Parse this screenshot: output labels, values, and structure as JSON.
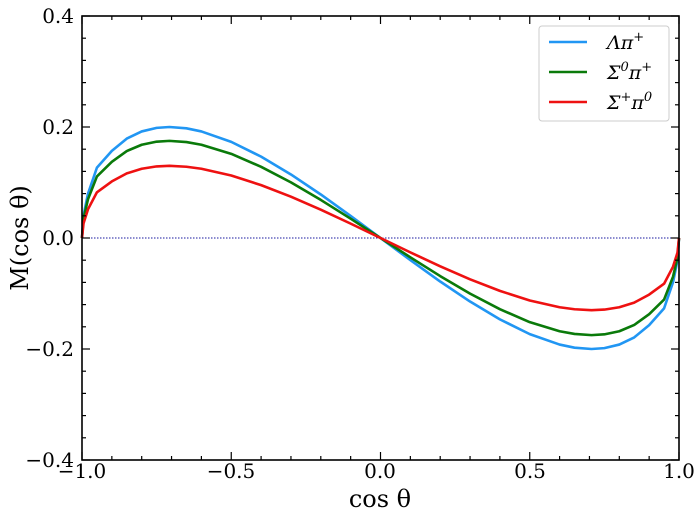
{
  "chart_data": {
    "type": "line",
    "title": "",
    "xlabel": "cos θ",
    "ylabel": "M(cos θ)",
    "xlim": [
      -1.0,
      1.0
    ],
    "ylim": [
      -0.4,
      0.4
    ],
    "x_ticks": [
      -1.0,
      -0.5,
      0.0,
      0.5,
      1.0
    ],
    "x_tick_labels": [
      "−1.0",
      "−0.5",
      "0.0",
      "0.5",
      "1.0"
    ],
    "y_ticks": [
      -0.4,
      -0.2,
      0.0,
      0.2,
      0.4
    ],
    "y_tick_labels": [
      "−0.4",
      "−0.2",
      "0.0",
      "0.2",
      "0.4"
    ],
    "legend_position": "top-right",
    "grid": false,
    "reference_line": {
      "y": 0.0,
      "style": "dotted",
      "color": "#1a1aa0"
    },
    "curve_form": "A · x · sqrt(1 − x²)",
    "x": [
      -1.0,
      -0.995,
      -0.98,
      -0.95,
      -0.9,
      -0.85,
      -0.8,
      -0.75,
      -0.707,
      -0.65,
      -0.6,
      -0.5,
      -0.4,
      -0.3,
      -0.2,
      -0.1,
      0.0,
      0.1,
      0.2,
      0.3,
      0.4,
      0.5,
      0.6,
      0.65,
      0.707,
      0.75,
      0.8,
      0.85,
      0.9,
      0.95,
      0.98,
      0.995,
      1.0
    ],
    "series": [
      {
        "name": "Λπ⁺",
        "legend_main": "Λπ",
        "legend_sup": "+",
        "color": "#2196f3",
        "values": [
          0.0,
          0.0403,
          0.0796,
          0.1268,
          0.1569,
          0.1791,
          0.192,
          0.1984,
          0.2,
          0.1976,
          0.192,
          0.1732,
          0.1466,
          0.1145,
          0.0784,
          0.0398,
          0.0,
          -0.0398,
          -0.0784,
          -0.1145,
          -0.1466,
          -0.1732,
          -0.192,
          -0.1976,
          -0.2,
          -0.1984,
          -0.192,
          -0.1791,
          -0.1569,
          -0.1268,
          -0.0796,
          -0.0403,
          0.0
        ]
      },
      {
        "name": "Σ⁰π⁺",
        "legend_main": "Σ",
        "legend_sup1": "0",
        "legend_mid": "π",
        "legend_sup2": "+",
        "color": "#0a7a0a",
        "values": [
          0.0,
          0.0352,
          0.0697,
          0.1109,
          0.1373,
          0.1567,
          0.168,
          0.1736,
          0.175,
          0.1729,
          0.168,
          0.1516,
          0.1283,
          0.1002,
          0.0686,
          0.0348,
          0.0,
          -0.0348,
          -0.0686,
          -0.1002,
          -0.1283,
          -0.1516,
          -0.168,
          -0.1729,
          -0.175,
          -0.1736,
          -0.168,
          -0.1567,
          -0.1373,
          -0.1109,
          -0.0697,
          -0.0352,
          0.0
        ]
      },
      {
        "name": "Σ⁺π⁰",
        "legend_main": "Σ",
        "legend_sup1": "+",
        "legend_mid": "π",
        "legend_sup2": "0",
        "color": "#ee1111",
        "values": [
          0.0,
          0.0262,
          0.0517,
          0.0824,
          0.102,
          0.1164,
          0.1248,
          0.129,
          0.13,
          0.1284,
          0.1248,
          0.1126,
          0.0953,
          0.0744,
          0.051,
          0.0259,
          0.0,
          -0.0259,
          -0.051,
          -0.0744,
          -0.0953,
          -0.1126,
          -0.1248,
          -0.1284,
          -0.13,
          -0.129,
          -0.1248,
          -0.1164,
          -0.102,
          -0.0824,
          -0.0517,
          -0.0262,
          0.0
        ]
      }
    ]
  }
}
